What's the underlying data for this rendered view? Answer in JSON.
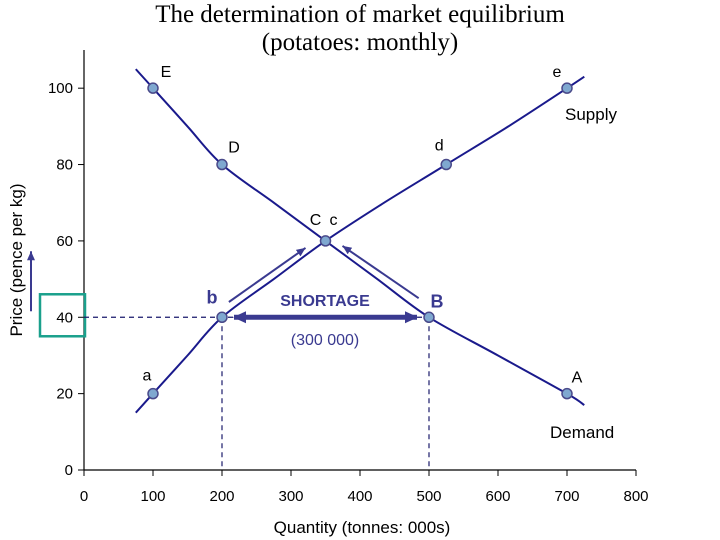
{
  "chart_data": {
    "type": "line",
    "title": "The determination of market equilibrium",
    "subtitle": "(potatoes: monthly)",
    "xlabel": "Quantity (tonnes: 000s)",
    "ylabel": "Price (pence per kg)",
    "xlim": [
      0,
      800
    ],
    "ylim": [
      0,
      110
    ],
    "x_ticks": [
      "0",
      "100",
      "200",
      "300",
      "400",
      "500",
      "600",
      "700",
      "800"
    ],
    "y_ticks": [
      "0",
      "20",
      "40",
      "60",
      "80",
      "100"
    ],
    "grid": false,
    "series": [
      {
        "name": "Supply",
        "color": "#1a1a8c",
        "curve": [
          [
            75,
            15
          ],
          [
            100,
            20
          ],
          [
            150,
            30
          ],
          [
            200,
            40
          ],
          [
            275,
            50
          ],
          [
            350,
            60
          ],
          [
            435,
            70
          ],
          [
            525,
            80
          ],
          [
            615,
            90
          ],
          [
            700,
            100
          ],
          [
            725,
            103
          ]
        ],
        "points": [
          {
            "label": "a",
            "x": 100,
            "y": 20
          },
          {
            "label": "b",
            "x": 200,
            "y": 40
          },
          {
            "label": "c",
            "x": 350,
            "y": 60
          },
          {
            "label": "d",
            "x": 525,
            "y": 80
          },
          {
            "label": "e",
            "x": 700,
            "y": 100
          }
        ]
      },
      {
        "name": "Demand",
        "color": "#1a1a8c",
        "curve": [
          [
            75,
            105
          ],
          [
            100,
            100
          ],
          [
            150,
            90
          ],
          [
            200,
            80
          ],
          [
            275,
            70
          ],
          [
            350,
            60
          ],
          [
            425,
            50
          ],
          [
            500,
            40
          ],
          [
            600,
            30
          ],
          [
            700,
            20
          ],
          [
            725,
            17
          ]
        ],
        "points": [
          {
            "label": "E",
            "x": 100,
            "y": 100
          },
          {
            "label": "D",
            "x": 200,
            "y": 80
          },
          {
            "label": "C",
            "x": 350,
            "y": 60
          },
          {
            "label": "B",
            "x": 500,
            "y": 40
          },
          {
            "label": "A",
            "x": 700,
            "y": 20
          }
        ]
      }
    ],
    "highlighted_price": "40",
    "shortage": {
      "label": "SHORTAGE",
      "amount": "(300 000)",
      "price": 40,
      "from_x": 200,
      "to_x": 500
    },
    "colors": {
      "curve": "#1a1a8c",
      "point_fill": "#7fa8d0",
      "point_stroke": "#4a4a8a",
      "annotation": "#3a3a90",
      "highlight_box": "#1aa08c",
      "dashed": "#1a1a6c"
    }
  }
}
